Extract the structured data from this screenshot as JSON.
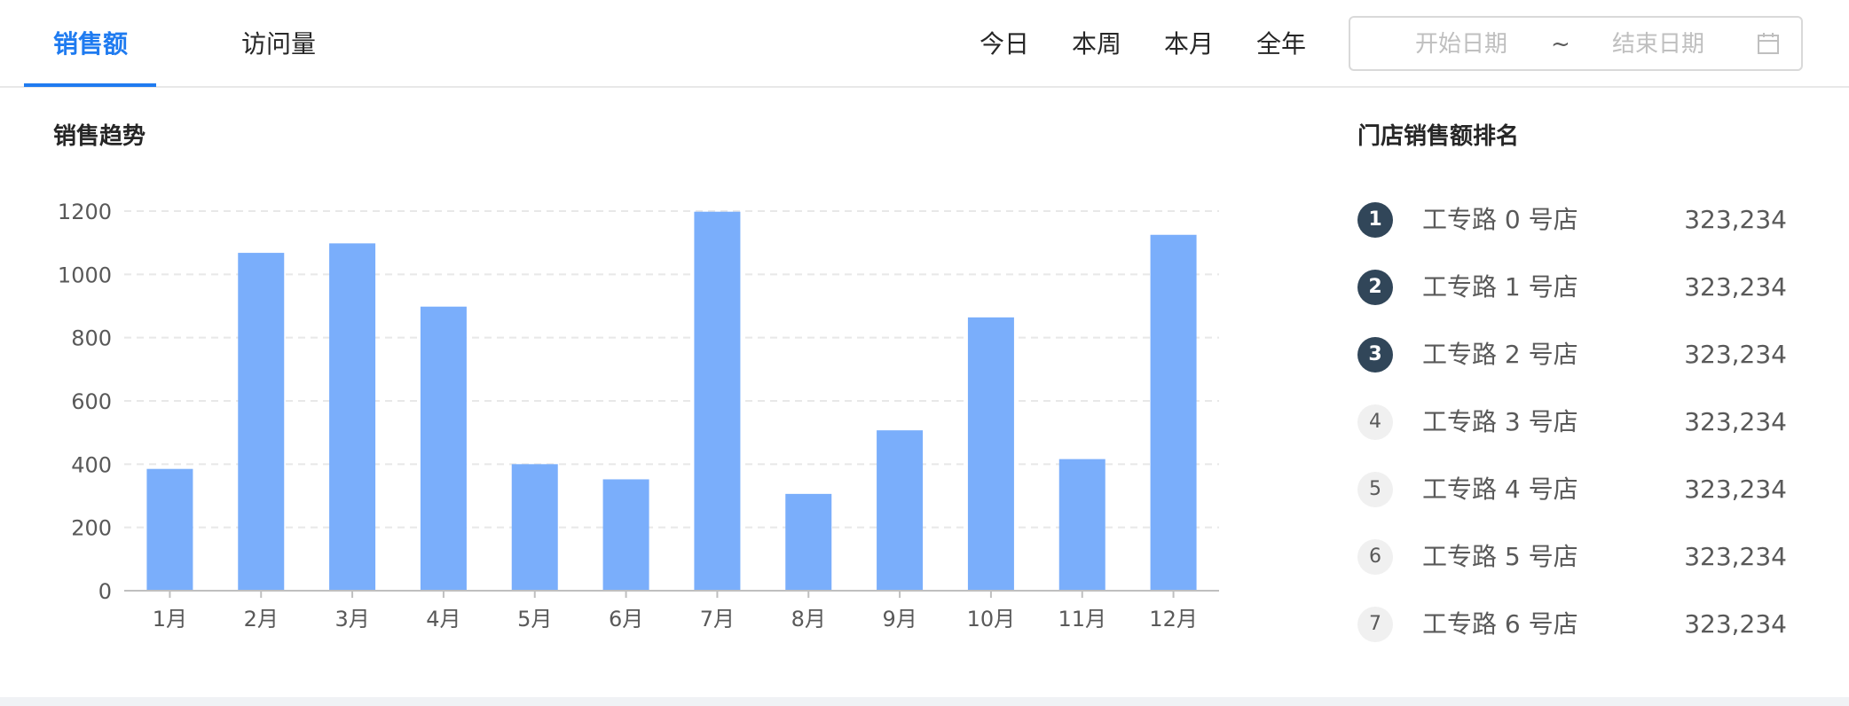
{
  "tabs": [
    {
      "label": "销售额",
      "active": true
    },
    {
      "label": "访问量",
      "active": false
    }
  ],
  "ranges": [
    "今日",
    "本周",
    "本月",
    "全年"
  ],
  "date_range": {
    "start_placeholder": "开始日期",
    "separator": "~",
    "end_placeholder": "结束日期",
    "icon": "calendar-icon"
  },
  "trend": {
    "title": "销售趋势"
  },
  "ranking": {
    "title": "门店销售额排名",
    "items": [
      {
        "rank": "1",
        "name": "工专路 0 号店",
        "value": "323,234"
      },
      {
        "rank": "2",
        "name": "工专路 1 号店",
        "value": "323,234"
      },
      {
        "rank": "3",
        "name": "工专路 2 号店",
        "value": "323,234"
      },
      {
        "rank": "4",
        "name": "工专路 3 号店",
        "value": "323,234"
      },
      {
        "rank": "5",
        "name": "工专路 4 号店",
        "value": "323,234"
      },
      {
        "rank": "6",
        "name": "工专路 5 号店",
        "value": "323,234"
      },
      {
        "rank": "7",
        "name": "工专路 6 号店",
        "value": "323,234"
      }
    ]
  },
  "colors": {
    "accent": "#1f7bf0",
    "bar": "#7aaefb",
    "badge_top": "#314659",
    "badge_rest": "#f0f0f0"
  },
  "chart_data": {
    "type": "bar",
    "title": "销售趋势",
    "categories": [
      "1月",
      "2月",
      "3月",
      "4月",
      "5月",
      "6月",
      "7月",
      "8月",
      "9月",
      "10月",
      "11月",
      "12月"
    ],
    "values": [
      385,
      1068,
      1098,
      898,
      400,
      352,
      1198,
      306,
      507,
      864,
      416,
      1125
    ],
    "ylim": [
      0,
      1200
    ],
    "yticks": [
      "0",
      "200",
      "400",
      "600",
      "800",
      "1000",
      "1200"
    ],
    "grid": true,
    "xlabel": "",
    "ylabel": ""
  }
}
